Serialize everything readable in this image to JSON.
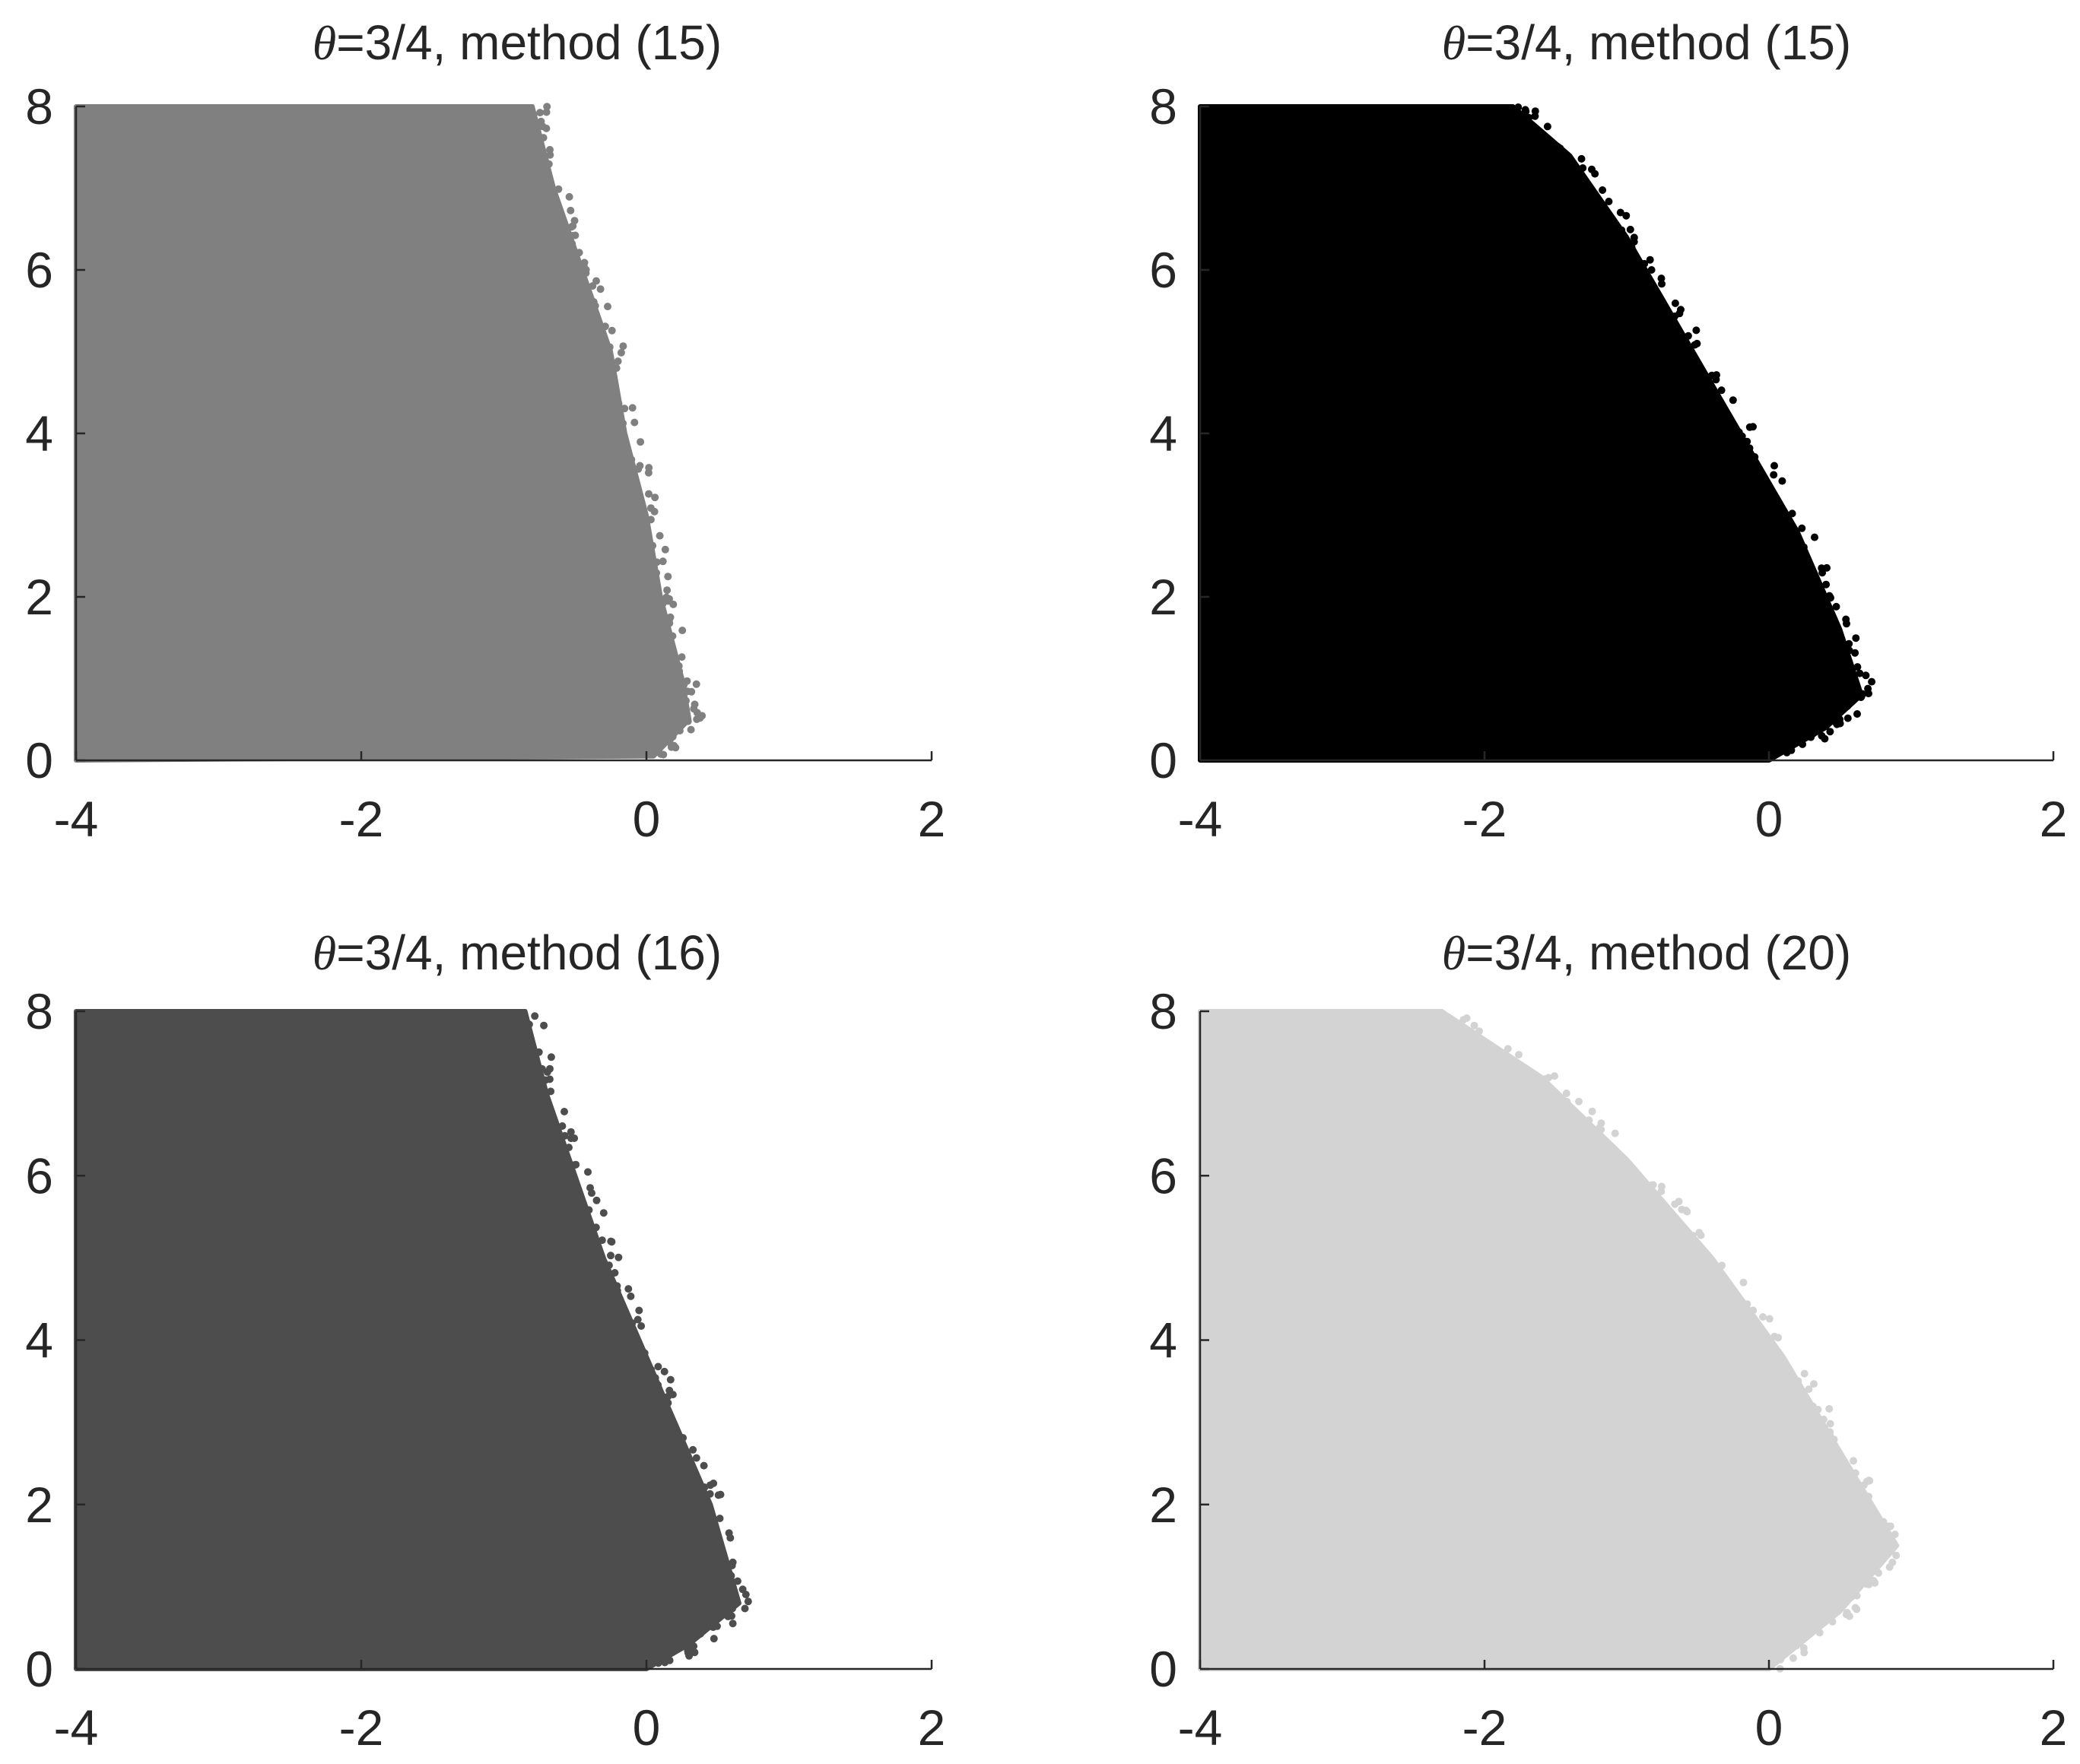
{
  "figure": {
    "panels": [
      {
        "title_symbol": "θ",
        "title_rest": "=3/4, method (15)",
        "color": "#808080",
        "xticks": [
          "-4",
          "-2",
          "0",
          "2"
        ],
        "yticks": [
          "0",
          "2",
          "4",
          "6",
          "8"
        ]
      },
      {
        "title_symbol": "θ",
        "title_rest": "=3/4, method (15)",
        "color": "#000000",
        "xticks": [
          "-4",
          "-2",
          "0",
          "2"
        ],
        "yticks": [
          "0",
          "2",
          "4",
          "6",
          "8"
        ]
      },
      {
        "title_symbol": "θ",
        "title_rest": "=3/4, method (16)",
        "color": "#4d4d4d",
        "xticks": [
          "-4",
          "-2",
          "0",
          "2"
        ],
        "yticks": [
          "0",
          "2",
          "4",
          "6",
          "8"
        ]
      },
      {
        "title_symbol": "θ",
        "title_rest": "=3/4, method (20)",
        "color": "#d3d3d3",
        "xticks": [
          "-4",
          "-2",
          "0",
          "2"
        ],
        "yticks": [
          "0",
          "2",
          "4",
          "6",
          "8"
        ]
      }
    ]
  },
  "chart_data": [
    {
      "type": "scatter",
      "title": "θ=3/4, method (15)",
      "xlim": [
        -4,
        2
      ],
      "ylim": [
        0,
        8
      ],
      "xticks": [
        -4,
        -2,
        0,
        2
      ],
      "yticks": [
        0,
        2,
        4,
        6,
        8
      ],
      "grid": false,
      "color": "#808080",
      "region_boundary": [
        [
          -0.8,
          8
        ],
        [
          -0.65,
          7
        ],
        [
          -0.45,
          6
        ],
        [
          -0.25,
          5
        ],
        [
          -0.15,
          4
        ],
        [
          0.0,
          3
        ],
        [
          0.1,
          2
        ],
        [
          0.25,
          1
        ],
        [
          0.3,
          0.5
        ],
        [
          0.05,
          0.05
        ]
      ]
    },
    {
      "type": "scatter",
      "title": "θ=3/4, method (15)",
      "xlim": [
        -4,
        2
      ],
      "ylim": [
        0,
        8
      ],
      "xticks": [
        -4,
        -2,
        0,
        2
      ],
      "yticks": [
        0,
        2,
        4,
        6,
        8
      ],
      "grid": false,
      "color": "#000000",
      "region_boundary": [
        [
          -1.8,
          8
        ],
        [
          -1.4,
          7.4
        ],
        [
          -1.0,
          6.4
        ],
        [
          -0.6,
          5.2
        ],
        [
          -0.2,
          4.0
        ],
        [
          0.2,
          2.8
        ],
        [
          0.5,
          1.6
        ],
        [
          0.65,
          0.8
        ],
        [
          0.4,
          0.4
        ],
        [
          0.0,
          0.0
        ]
      ]
    },
    {
      "type": "scatter",
      "title": "θ=3/4, method (16)",
      "xlim": [
        -4,
        2
      ],
      "ylim": [
        0,
        8
      ],
      "xticks": [
        -4,
        -2,
        0,
        2
      ],
      "yticks": [
        0,
        2,
        4,
        6,
        8
      ],
      "grid": false,
      "color": "#4d4d4d",
      "region_boundary": [
        [
          -0.85,
          8
        ],
        [
          -0.7,
          7
        ],
        [
          -0.5,
          6
        ],
        [
          -0.3,
          5
        ],
        [
          -0.05,
          4
        ],
        [
          0.2,
          3
        ],
        [
          0.45,
          2
        ],
        [
          0.65,
          0.8
        ],
        [
          0.3,
          0.3
        ],
        [
          0.0,
          0.0
        ]
      ]
    },
    {
      "type": "scatter",
      "title": "θ=3/4, method (20)",
      "xlim": [
        -4,
        2
      ],
      "ylim": [
        0,
        8
      ],
      "xticks": [
        -4,
        -2,
        0,
        2
      ],
      "yticks": [
        0,
        2,
        4,
        6,
        8
      ],
      "grid": false,
      "color": "#d3d3d3",
      "region_boundary": [
        [
          -2.3,
          8
        ],
        [
          -1.6,
          7.2
        ],
        [
          -1.0,
          6.2
        ],
        [
          -0.4,
          5.0
        ],
        [
          0.1,
          3.8
        ],
        [
          0.55,
          2.5
        ],
        [
          0.9,
          1.5
        ],
        [
          0.5,
          0.7
        ],
        [
          0.0,
          0.0
        ]
      ]
    }
  ]
}
